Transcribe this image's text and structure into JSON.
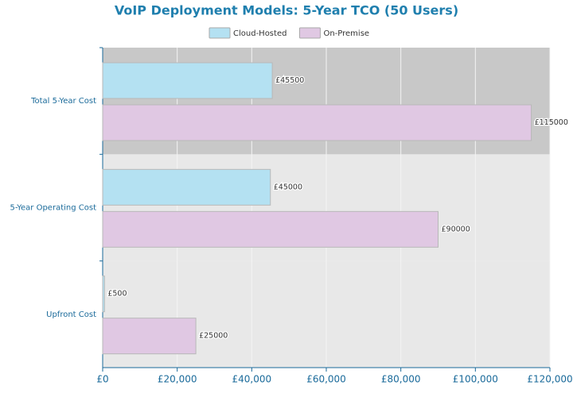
{
  "chart_data": {
    "type": "bar",
    "orientation": "horizontal",
    "title": "VoIP Deployment Models: 5-Year TCO (50 Users)",
    "categories": [
      "Upfront Cost",
      "5-Year Operating Cost",
      "Total 5-Year Cost"
    ],
    "series": [
      {
        "name": "Cloud-Hosted",
        "color": "#b4e1f2",
        "values": [
          500,
          45000,
          45500
        ],
        "value_labels": [
          "£500",
          "£45000",
          "£45500"
        ]
      },
      {
        "name": "On-Premise",
        "color": "#e0c8e3",
        "values": [
          25000,
          90000,
          115000
        ],
        "value_labels": [
          "£25000",
          "£90000",
          "£115000"
        ]
      }
    ],
    "xlim": [
      0,
      120000
    ],
    "xticks": [
      {
        "value": 0,
        "label": "£0"
      },
      {
        "value": 20000,
        "label": "£20,000"
      },
      {
        "value": 40000,
        "label": "£40,000"
      },
      {
        "value": 60000,
        "label": "£60,000"
      },
      {
        "value": 80000,
        "label": "£80,000"
      },
      {
        "value": 100000,
        "label": "£100,000"
      },
      {
        "value": 120000,
        "label": "£120,000"
      }
    ],
    "grid": true,
    "legend": "top"
  }
}
